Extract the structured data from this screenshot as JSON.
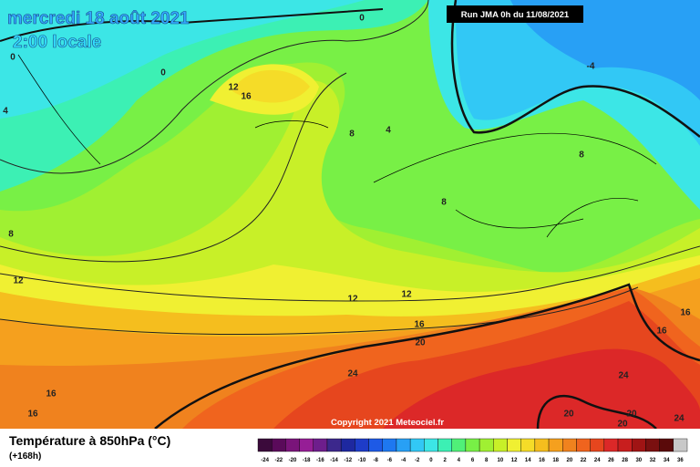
{
  "header": {
    "date": "mercredi 18 août 2021",
    "time": "2:00 locale",
    "run": "Run JMA 0h du 11/08/2021"
  },
  "copyright": "Copyright 2021 Meteociel.fr",
  "legend": {
    "title": "Température à 850hPa (°C)",
    "lead": "(+168h)",
    "ticks": [
      -24,
      -22,
      -20,
      -18,
      -16,
      -14,
      -12,
      -10,
      -8,
      -6,
      -4,
      -2,
      0,
      2,
      4,
      6,
      8,
      10,
      12,
      14,
      16,
      18,
      20,
      22,
      24,
      26,
      28,
      30,
      32,
      34,
      36
    ],
    "colors": [
      "#3b0a3b",
      "#5a0a5a",
      "#7a147a",
      "#961e96",
      "#6e1e8c",
      "#3c288c",
      "#1e28a0",
      "#1e3cc8",
      "#1e5ae6",
      "#1e78f0",
      "#28a0f5",
      "#32c8f5",
      "#3ce6e6",
      "#3cf0b4",
      "#50f078",
      "#78f046",
      "#a0f032",
      "#c8f028",
      "#f0f032",
      "#f5dc28",
      "#f5be1e",
      "#f5a01e",
      "#f0821e",
      "#f0641e",
      "#e6461e",
      "#dc2828",
      "#c81e1e",
      "#a01414",
      "#7a1010",
      "#5a0a0a",
      "#c8c8c8"
    ]
  },
  "contour_labels": [
    0,
    0,
    0,
    -4,
    4,
    12,
    16,
    8,
    4,
    8,
    8,
    8,
    12,
    12,
    12,
    16,
    20,
    24,
    16,
    16,
    24,
    16,
    16,
    20,
    20,
    20,
    24
  ]
}
